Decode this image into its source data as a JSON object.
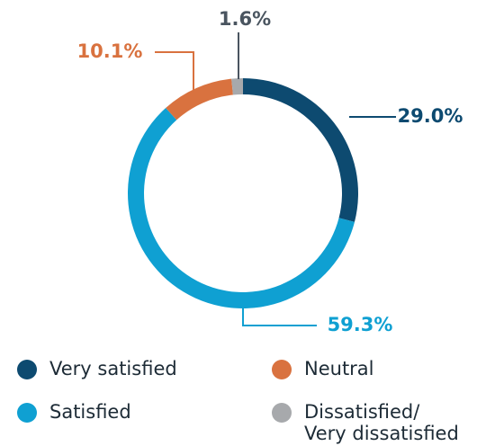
{
  "chart_data": {
    "type": "donut",
    "categories": [
      "Very satisfied",
      "Satisfied",
      "Neutral",
      "Dissatisfied/\nVery dissatisfied"
    ],
    "values": [
      29.0,
      59.3,
      10.1,
      1.6
    ],
    "value_labels": [
      "29.0%",
      "59.3%",
      "10.1%",
      "1.6%"
    ],
    "colors": [
      "#0d4a70",
      "#0fa0d2",
      "#d9723f",
      "#a7a9ac"
    ],
    "label_colors": [
      "#0d4a70",
      "#0fa0d2",
      "#d9723f",
      "#4a5560"
    ]
  }
}
